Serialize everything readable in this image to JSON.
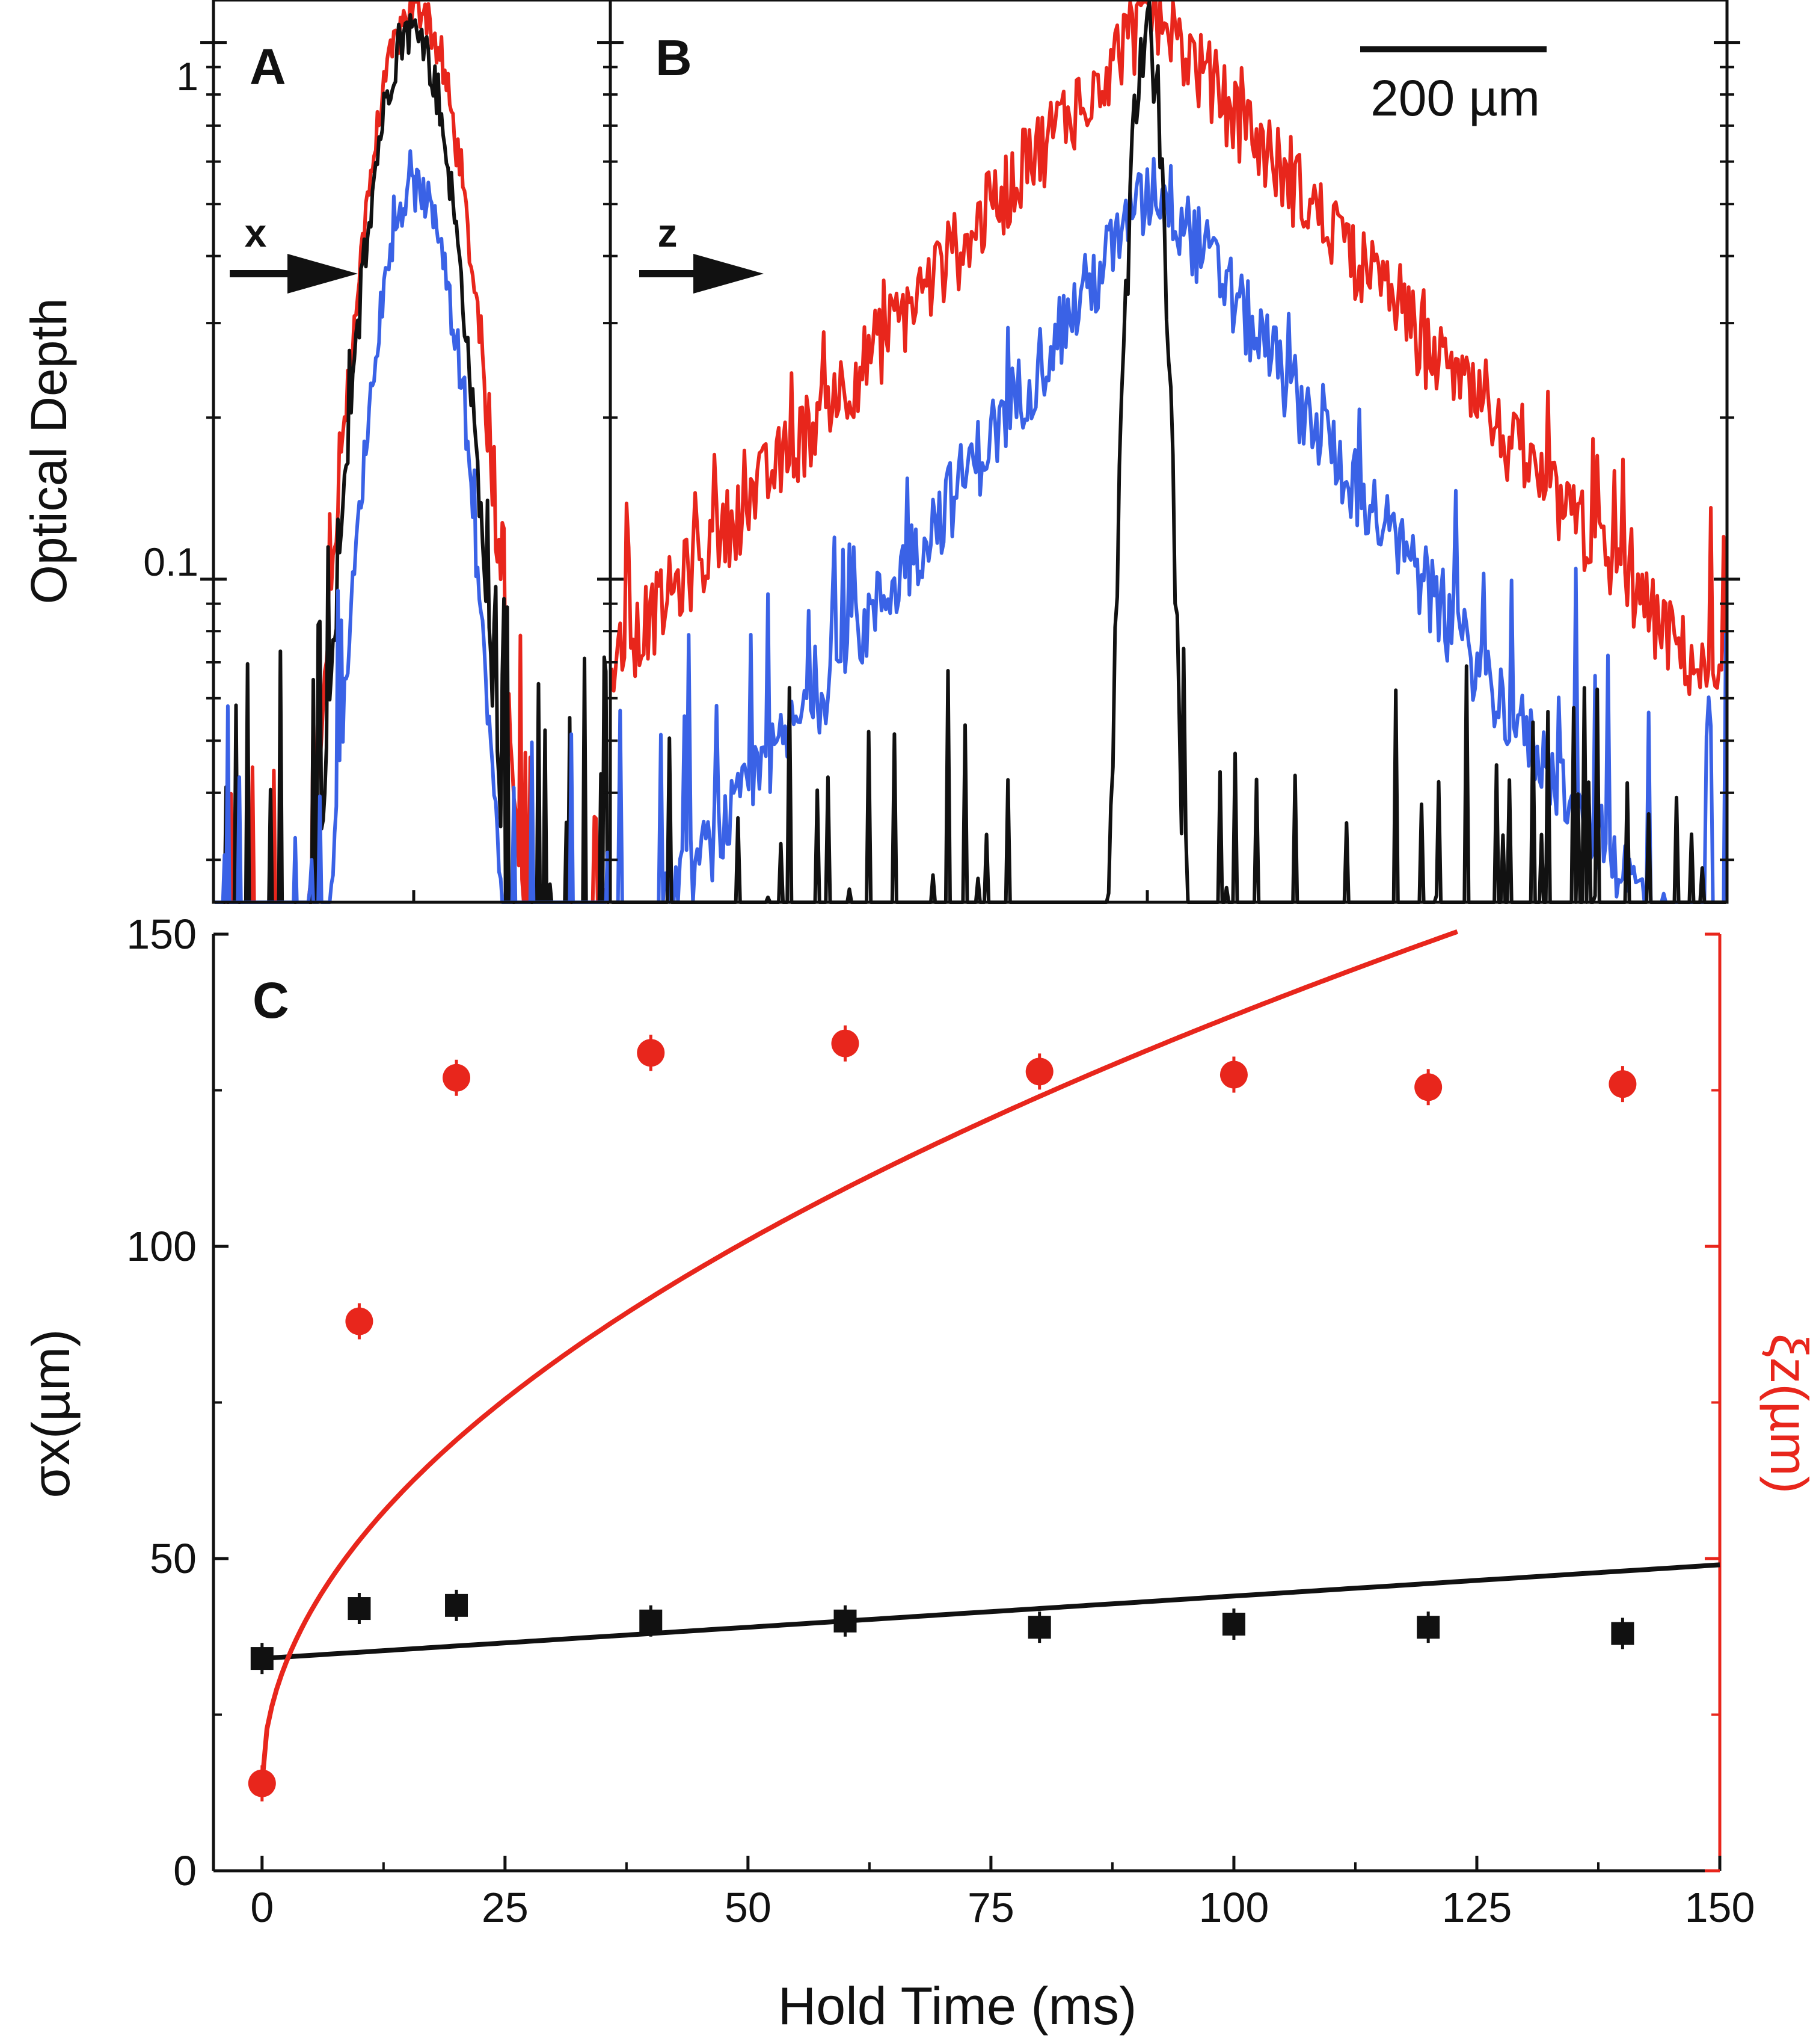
{
  "figure": {
    "panel_a_label": "A",
    "panel_b_label": "B",
    "panel_c_label": "C",
    "scale_bar_label": "200 µm",
    "arrow_a_label": "x",
    "arrow_b_label": "z",
    "colors": {
      "black": "#111111",
      "red": "#e8261c",
      "blue": "#3a62e6"
    }
  },
  "chart_data": [
    {
      "type": "line",
      "panel": "A",
      "ylabel": "Optical Depth",
      "yscale": "log",
      "ylim": [
        0.025,
        1.2
      ],
      "y_ticks": [
        {
          "value": 1,
          "label": "1"
        },
        {
          "value": 0.1,
          "label": "0.1"
        }
      ],
      "x_axis": "x (position)",
      "series": [
        {
          "name": "black",
          "color": "#111111",
          "peak_x": 0.5,
          "peak": 1.05,
          "width": 0.085,
          "noise": 0.05
        },
        {
          "name": "red",
          "color": "#e8261c",
          "peak_x": 0.51,
          "peak": 1.15,
          "width": 0.095,
          "noise": 0.04
        },
        {
          "name": "blue",
          "color": "#3a62e6",
          "peak_x": 0.51,
          "peak": 0.53,
          "width": 0.085,
          "noise": 0.04
        }
      ]
    },
    {
      "type": "line",
      "panel": "B",
      "yscale": "log",
      "ylim": [
        0.025,
        1.2
      ],
      "x_axis": "z (position)",
      "series": [
        {
          "name": "black",
          "color": "#111111",
          "peak_x": 0.48,
          "peak": 1.05,
          "width": 0.012,
          "noise": 0.05
        },
        {
          "name": "red",
          "color": "#e8261c",
          "peak_x": 0.485,
          "peak": 1.15,
          "decay": 0.17,
          "noise": 0.05
        },
        {
          "name": "blue",
          "color": "#3a62e6",
          "peak_x": 0.49,
          "peak": 0.55,
          "decay": 0.135,
          "noise": 0.05
        }
      ]
    },
    {
      "type": "scatter",
      "panel": "C",
      "xlabel": "Hold Time (ms)",
      "ylabel": "σx(µm)",
      "ylabel_right": "ξz(µm)",
      "xlim": [
        -5,
        150
      ],
      "ylim": [
        0,
        150
      ],
      "x_ticks": [
        0,
        25,
        50,
        75,
        100,
        125,
        150
      ],
      "y_ticks": [
        0,
        50,
        100,
        150
      ],
      "series": [
        {
          "name": "σx",
          "marker": "square",
          "color": "#111111",
          "x": [
            0,
            10,
            20,
            40,
            60,
            80,
            100,
            120,
            140
          ],
          "y": [
            34,
            42,
            42.5,
            40,
            40,
            39,
            39.5,
            39,
            38
          ]
        },
        {
          "name": "ξz",
          "marker": "circle",
          "color": "#e8261c",
          "x": [
            0,
            10,
            20,
            40,
            60,
            80,
            100,
            120,
            140
          ],
          "y": [
            14,
            88,
            127,
            131,
            132.5,
            128,
            127.5,
            125.5,
            126
          ]
        }
      ],
      "fits": [
        {
          "name": "σx fit",
          "color": "#111111",
          "form": "linear",
          "a": 34,
          "b": 0.1
        },
        {
          "name": "ξz fit",
          "color": "#e8261c",
          "form": "sqrt",
          "a": 14,
          "b": 12.3
        }
      ]
    }
  ]
}
